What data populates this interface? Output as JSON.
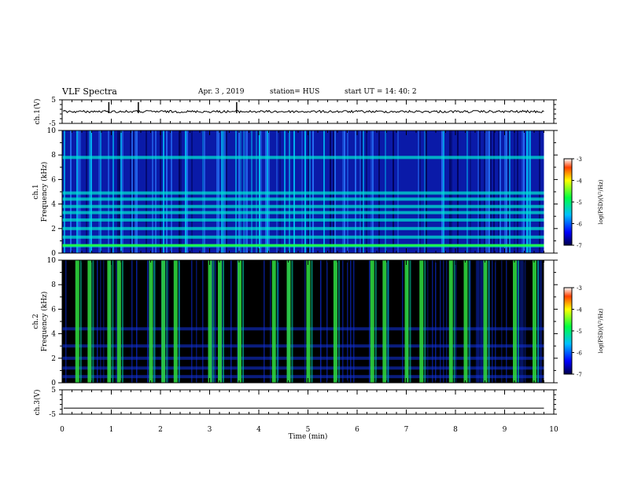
{
  "header": {
    "title": "VLF Spectra",
    "date": "Apr. 3 , 2019",
    "station": "station= HUS",
    "start_ut": "start UT = 14: 40: 2"
  },
  "chart_data": [
    {
      "type": "line",
      "panel": "ch1-waveform",
      "ylabel": "ch.1(V)",
      "ylim": [
        -5,
        5
      ],
      "yticks": [
        "5",
        "-5"
      ],
      "xlim": [
        0,
        10
      ],
      "baseline": 0,
      "spikes_min": [
        0.95,
        1.55,
        3.55
      ]
    },
    {
      "type": "heatmap",
      "panel": "ch1-spectrogram",
      "ylabel": "Frequency (kHz)",
      "ylabel2": "ch.1",
      "ylim": [
        0,
        10
      ],
      "yticks": [
        "0",
        "2",
        "4",
        "6",
        "8",
        "10"
      ],
      "xlim": [
        0,
        10
      ],
      "data_end_min": 9.8,
      "band_frequencies_khz": [
        0.6,
        1.3,
        2.0,
        2.7,
        3.3,
        3.8,
        4.4,
        4.9,
        7.8
      ],
      "colorbar": {
        "label": "log(PSD)(V²/Hz)",
        "range": [
          -7,
          -3
        ],
        "ticks": [
          "-3",
          "-4",
          "-5",
          "-6",
          "-7"
        ]
      }
    },
    {
      "type": "heatmap",
      "panel": "ch2-spectrogram",
      "ylabel": "Frequency (kHz)",
      "ylabel2": "ch.2",
      "ylim": [
        0,
        10
      ],
      "yticks": [
        "0",
        "2",
        "4",
        "6",
        "8",
        "10"
      ],
      "xlim": [
        0,
        10
      ],
      "data_end_min": 9.8,
      "burst_times_min": [
        0.3,
        0.55,
        0.95,
        1.15,
        1.8,
        2.05,
        2.3,
        3.0,
        3.2,
        3.6,
        4.3,
        4.6,
        5.0,
        5.55,
        6.3,
        6.55,
        7.0,
        7.3,
        7.9,
        8.2,
        8.6,
        9.2,
        9.6
      ],
      "colorbar": {
        "label": "log(PSD)(V²/Hz)",
        "range": [
          -7,
          -3
        ],
        "ticks": [
          "-3",
          "-4",
          "-5",
          "-6",
          "-7"
        ]
      }
    },
    {
      "type": "line",
      "panel": "ch3-waveform",
      "ylabel": "ch.3(V)",
      "ylim": [
        -5,
        5
      ],
      "yticks": [
        "5",
        "-5"
      ],
      "xlim": [
        0,
        10
      ],
      "baseline": -2.5
    }
  ],
  "x_axis": {
    "label": "Time (min)",
    "ticks": [
      "0",
      "1",
      "2",
      "3",
      "4",
      "5",
      "6",
      "7",
      "8",
      "9",
      "10"
    ]
  }
}
